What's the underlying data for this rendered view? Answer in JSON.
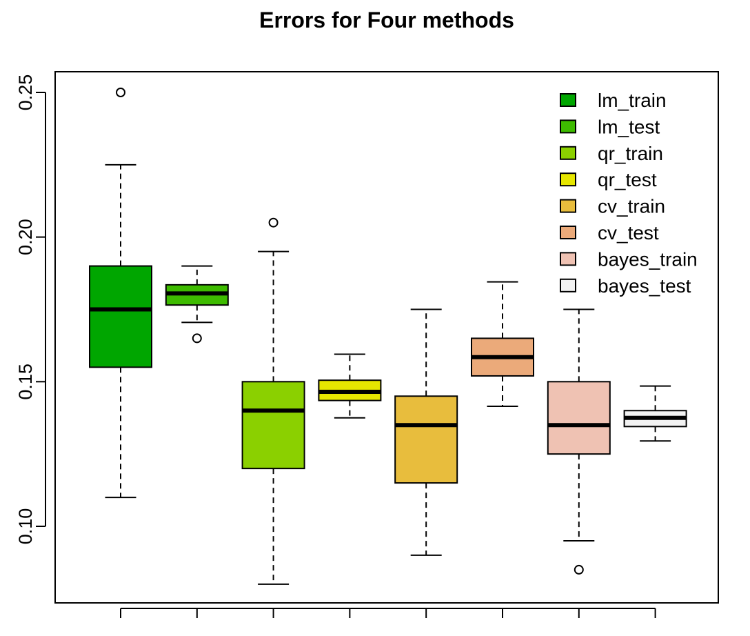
{
  "chart_data": {
    "type": "boxplot",
    "title": "Errors for Four methods",
    "xlabel": "",
    "ylabel": "",
    "ylim": [
      0.075,
      0.258
    ],
    "y_ticks": [
      0.1,
      0.15,
      0.2,
      0.25
    ],
    "y_tick_labels": [
      "0.10",
      "0.15",
      "0.20",
      "0.25"
    ],
    "x_tick_labels": [],
    "legend_position": "top-right",
    "grid": false,
    "series": [
      {
        "name": "lm_train",
        "color": "#00A600",
        "whisker_low": 0.11,
        "q1": 0.155,
        "median": 0.175,
        "q3": 0.19,
        "whisker_high": 0.225,
        "outliers": [
          0.25
        ]
      },
      {
        "name": "lm_test",
        "color": "#3EBB00",
        "whisker_low": 0.1705,
        "q1": 0.1765,
        "median": 0.1805,
        "q3": 0.1835,
        "whisker_high": 0.19,
        "outliers": [
          0.165
        ]
      },
      {
        "name": "qr_train",
        "color": "#8BD000",
        "whisker_low": 0.08,
        "q1": 0.12,
        "median": 0.14,
        "q3": 0.15,
        "whisker_high": 0.195,
        "outliers": [
          0.205
        ]
      },
      {
        "name": "qr_test",
        "color": "#E6E600",
        "whisker_low": 0.1375,
        "q1": 0.1435,
        "median": 0.1465,
        "q3": 0.1505,
        "whisker_high": 0.1595,
        "outliers": []
      },
      {
        "name": "cv_train",
        "color": "#E8BD3D",
        "whisker_low": 0.09,
        "q1": 0.115,
        "median": 0.135,
        "q3": 0.145,
        "whisker_high": 0.175,
        "outliers": []
      },
      {
        "name": "cv_test",
        "color": "#EBAA7A",
        "whisker_low": 0.1415,
        "q1": 0.152,
        "median": 0.1585,
        "q3": 0.165,
        "whisker_high": 0.1845,
        "outliers": []
      },
      {
        "name": "bayes_train",
        "color": "#EFC2B3",
        "whisker_low": 0.095,
        "q1": 0.125,
        "median": 0.135,
        "q3": 0.15,
        "whisker_high": 0.175,
        "outliers": [
          0.085
        ]
      },
      {
        "name": "bayes_test",
        "color": "#F2F2F2",
        "whisker_low": 0.1295,
        "q1": 0.1345,
        "median": 0.1375,
        "q3": 0.14,
        "whisker_high": 0.1485,
        "outliers": []
      }
    ]
  }
}
